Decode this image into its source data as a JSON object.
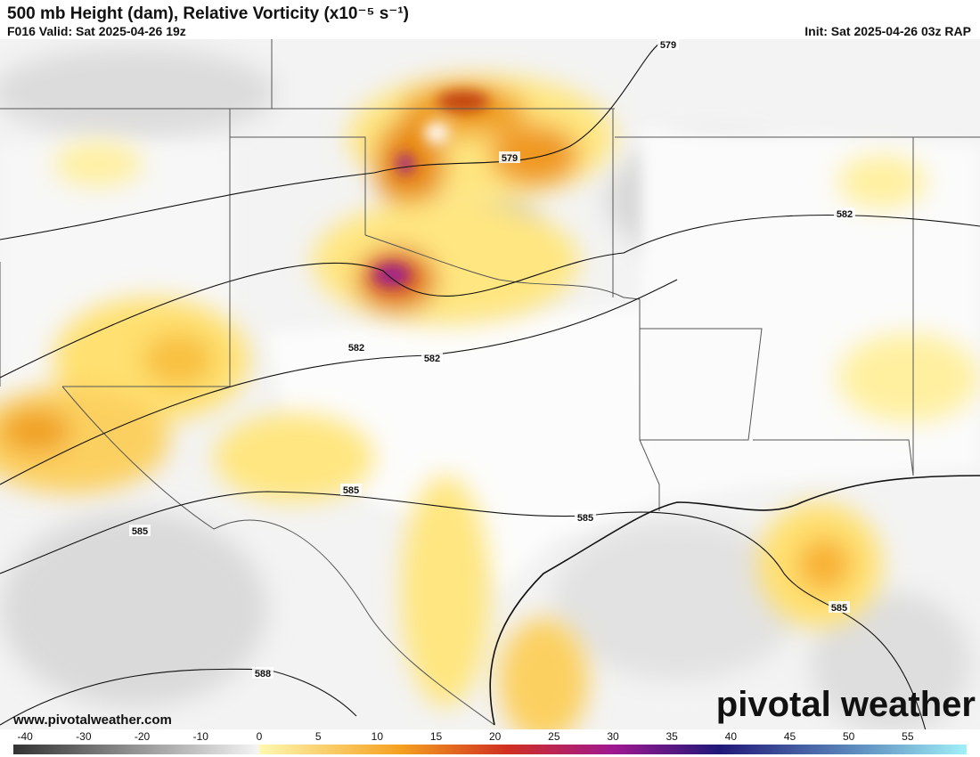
{
  "header": {
    "title": "500 mb Height (dam), Relative Vorticity (x10⁻⁵ s⁻¹)",
    "valid": "F016 Valid: Sat 2025-04-26 19z",
    "init": "Init: Sat 2025-04-26 03z RAP"
  },
  "map": {
    "contour_labels": [
      "579",
      "579",
      "582",
      "582",
      "582",
      "585",
      "585",
      "585",
      "585",
      "588"
    ]
  },
  "footer": {
    "website": "www.pivotalweather.com",
    "logo": "pivotal weather"
  },
  "colorbar": {
    "range": [
      -42,
      60
    ],
    "ticks": [
      -40,
      -30,
      -20,
      -10,
      0,
      5,
      10,
      15,
      20,
      25,
      30,
      35,
      40,
      45,
      50,
      55
    ]
  }
}
